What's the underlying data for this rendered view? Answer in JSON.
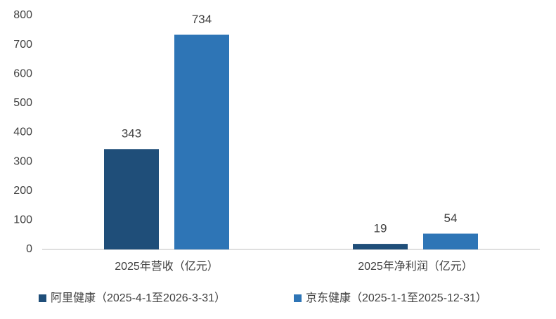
{
  "chart_data": {
    "type": "bar",
    "categories": [
      "2025年营收（亿元）",
      "2025年净利润（亿元）"
    ],
    "series": [
      {
        "name": "阿里健康（2025-4-1至2026-3-31）",
        "color": "#1f4e79",
        "values": [
          343,
          19
        ]
      },
      {
        "name": "京东健康（2025-1-1至2025-12-31）",
        "color": "#2e75b6",
        "values": [
          734,
          54
        ]
      }
    ],
    "ylim": [
      0,
      800
    ],
    "yticks": [
      0,
      100,
      200,
      300,
      400,
      500,
      600,
      700,
      800
    ],
    "grid": false,
    "legend": "bottom",
    "data_labels": true
  }
}
